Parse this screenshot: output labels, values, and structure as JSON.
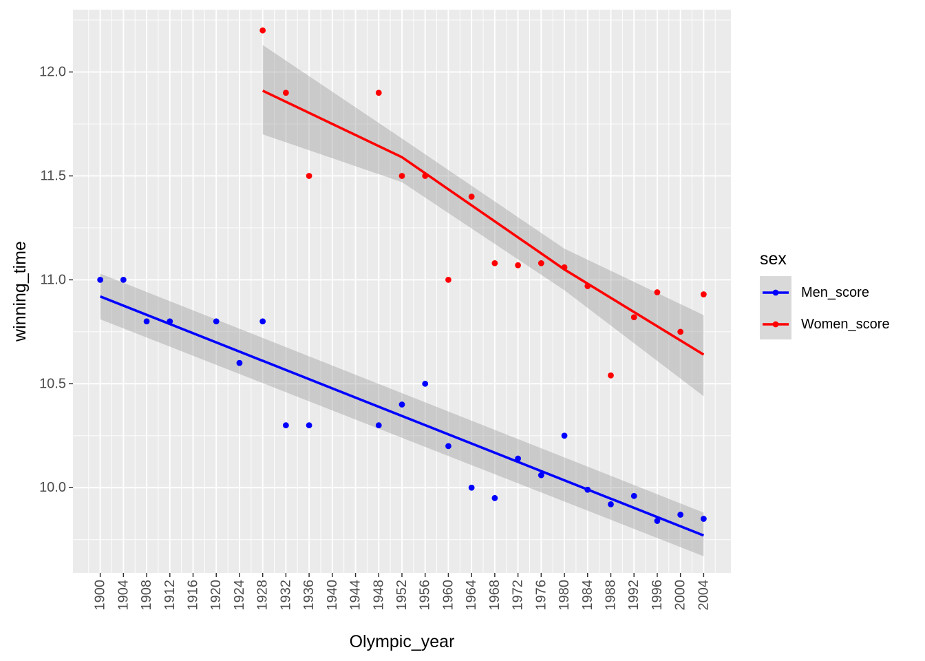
{
  "chart_data": {
    "type": "scatter",
    "xlabel": "Olympic_year",
    "ylabel": "winning_time",
    "xlim": [
      1895.3,
      2008.7
    ],
    "ylim": [
      9.59,
      12.3
    ],
    "x_ticks": [
      1900,
      1904,
      1908,
      1912,
      1916,
      1920,
      1924,
      1928,
      1932,
      1936,
      1940,
      1944,
      1948,
      1952,
      1956,
      1960,
      1964,
      1968,
      1972,
      1976,
      1980,
      1984,
      1988,
      1992,
      1996,
      2000,
      2004
    ],
    "y_ticks": [
      10.0,
      10.5,
      11.0,
      11.5,
      12.0
    ],
    "y_tick_labels": [
      "10.0",
      "10.5",
      "11.0",
      "11.5",
      "12.0"
    ],
    "grid": true,
    "legend": {
      "title": "sex",
      "placement": "right"
    },
    "series": [
      {
        "name": "Men_score",
        "color": "#0000ff",
        "x": [
          1900,
          1904,
          1908,
          1912,
          1920,
          1924,
          1928,
          1932,
          1936,
          1948,
          1952,
          1956,
          1960,
          1964,
          1968,
          1972,
          1976,
          1980,
          1984,
          1988,
          1992,
          1996,
          2000,
          2004
        ],
        "y": [
          11.0,
          11.0,
          10.8,
          10.8,
          10.8,
          10.6,
          10.8,
          10.3,
          10.3,
          10.3,
          10.4,
          10.5,
          10.2,
          10.0,
          9.95,
          10.14,
          10.06,
          10.25,
          9.99,
          9.92,
          9.96,
          9.84,
          9.87,
          9.85
        ],
        "fit": {
          "x": [
            1900,
            2004
          ],
          "y": [
            10.92,
            9.77
          ],
          "ci_upper": [
            11.03,
            9.88
          ],
          "ci_lower": [
            10.81,
            9.67
          ]
        }
      },
      {
        "name": "Women_score",
        "color": "#ff0000",
        "x": [
          1928,
          1932,
          1936,
          1948,
          1952,
          1956,
          1960,
          1964,
          1968,
          1972,
          1976,
          1980,
          1984,
          1988,
          1992,
          1996,
          2000,
          2004
        ],
        "y": [
          12.2,
          11.9,
          11.5,
          11.9,
          11.5,
          11.5,
          11.0,
          11.4,
          11.08,
          11.07,
          11.08,
          11.06,
          10.97,
          10.54,
          10.82,
          10.94,
          10.75,
          10.93
        ],
        "fit": {
          "x": [
            1928,
            1952,
            1980,
            2004
          ],
          "y": [
            11.91,
            11.59,
            11.05,
            10.64
          ],
          "ci_upper": [
            12.13,
            11.68,
            11.15,
            10.83
          ],
          "ci_lower": [
            11.7,
            11.47,
            10.95,
            10.44
          ]
        }
      }
    ]
  }
}
